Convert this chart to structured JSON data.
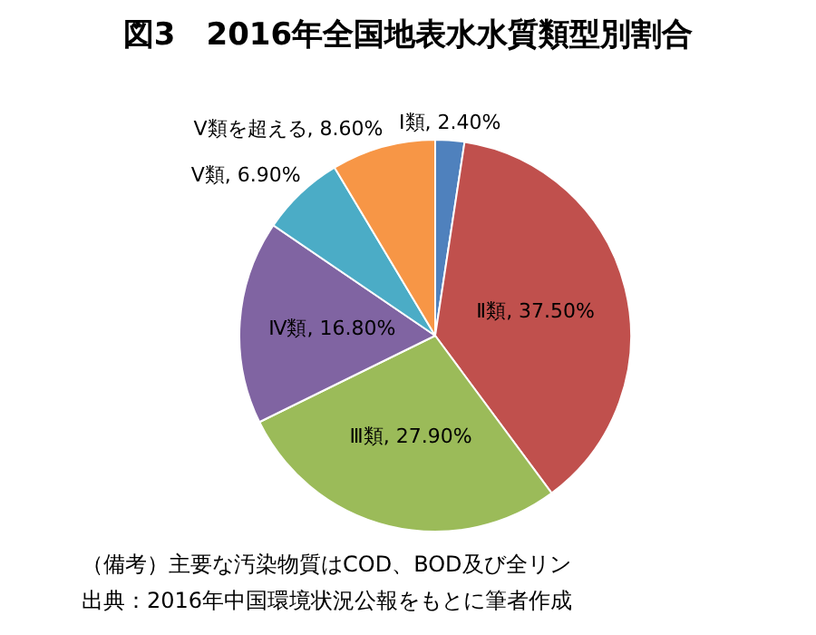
{
  "chart_data": {
    "type": "pie",
    "title": "図3　2016年全国地表水水質類型別割合",
    "categories": [
      "Ⅰ類",
      "Ⅱ類",
      "Ⅲ類",
      "Ⅳ類",
      "Ⅴ類",
      "Ⅴ類を超える"
    ],
    "values": [
      2.4,
      37.5,
      27.9,
      16.8,
      6.9,
      8.6
    ],
    "value_labels": [
      "2.40%",
      "37.50%",
      "27.90%",
      "16.80%",
      "6.90%",
      "8.60%"
    ],
    "colors": [
      "#4f81bd",
      "#c0504d",
      "#9bbb59",
      "#8064a2",
      "#4bacc6",
      "#f79646"
    ],
    "legend": false,
    "annotations": [
      "（備考）主要な汚染物質はCOD、BOD及び全リン",
      "出典：2016年中国環境状況公報をもとに筆者作成"
    ]
  }
}
